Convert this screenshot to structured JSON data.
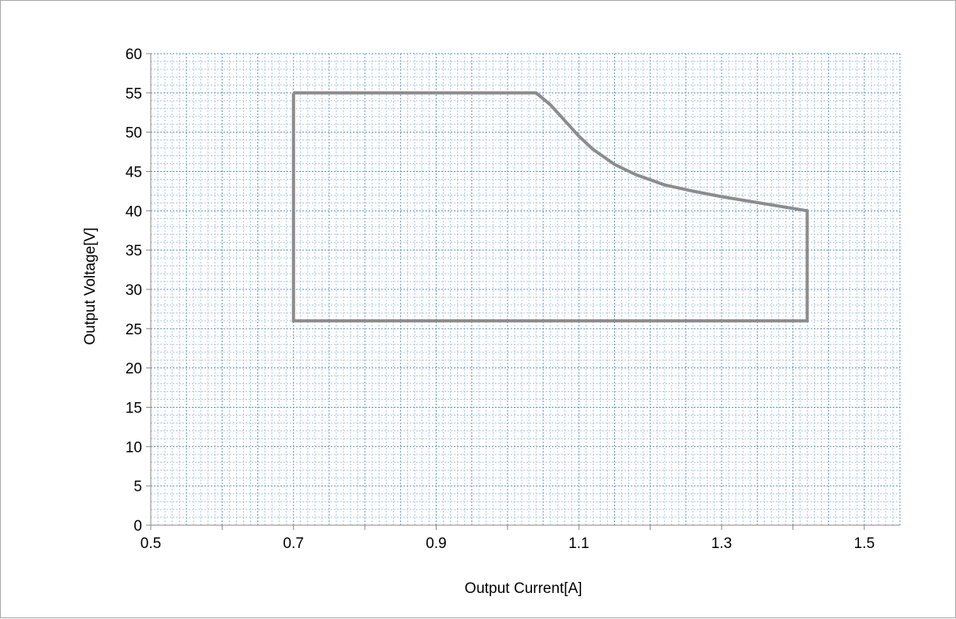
{
  "chart_data": {
    "type": "line",
    "title": "",
    "xlabel": "Output Current[A]",
    "ylabel": "Output Voltage[V]",
    "xlim": [
      0.5,
      1.55
    ],
    "ylim": [
      0,
      60
    ],
    "x_ticks": [
      0.5,
      0.7,
      0.9,
      1.1,
      1.3,
      1.5
    ],
    "x_tick_labels": [
      "0.5",
      "0.7",
      "0.9",
      "1.1",
      "1.3",
      "1.5"
    ],
    "y_ticks": [
      0,
      5,
      10,
      15,
      20,
      25,
      30,
      35,
      40,
      45,
      50,
      55,
      60
    ],
    "y_tick_labels": [
      "0",
      "5",
      "10",
      "15",
      "20",
      "25",
      "30",
      "35",
      "40",
      "45",
      "50",
      "55",
      "60"
    ],
    "grid": true,
    "legend": "none",
    "series": [
      {
        "x": [
          0.7,
          1.04,
          1.06,
          1.08,
          1.1,
          1.12,
          1.15,
          1.18,
          1.22,
          1.26,
          1.3,
          1.34,
          1.42,
          1.42,
          0.7,
          0.7
        ],
        "y": [
          55,
          55,
          53.5,
          51.5,
          49.5,
          47.8,
          45.9,
          44.6,
          43.3,
          42.5,
          41.8,
          41.2,
          40,
          26,
          26,
          55
        ]
      }
    ],
    "colors": {
      "line": "#8c8c8c",
      "line_dark": "#6e6e6e",
      "grid_major": "#5b8fd1",
      "grid_minor": "#a8c5ea",
      "axis": "#868686"
    }
  }
}
